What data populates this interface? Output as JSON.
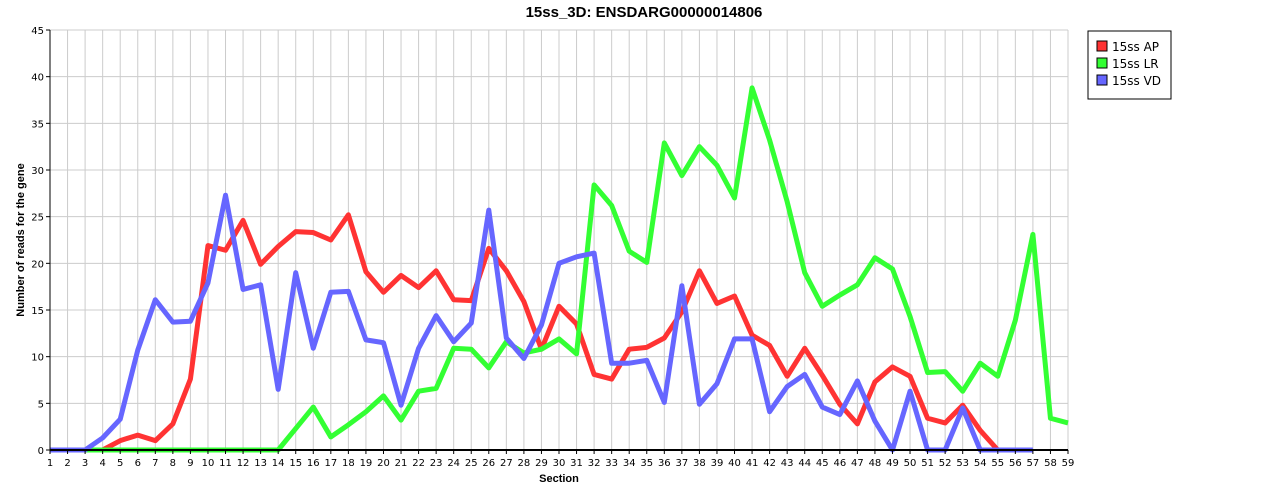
{
  "chart_data": {
    "type": "line",
    "title": "15ss_3D: ENSDARG00000014806",
    "xlabel": "Section",
    "ylabel": "Number of reads for the gene",
    "x": [
      1,
      2,
      3,
      4,
      5,
      6,
      7,
      8,
      9,
      10,
      11,
      12,
      13,
      14,
      15,
      16,
      17,
      18,
      19,
      20,
      21,
      22,
      23,
      24,
      25,
      26,
      27,
      28,
      29,
      30,
      31,
      32,
      33,
      34,
      35,
      36,
      37,
      38,
      39,
      40,
      41,
      42,
      43,
      44,
      45,
      46,
      47,
      48,
      49,
      50,
      51,
      52,
      53,
      54,
      55,
      56,
      57,
      58,
      59
    ],
    "xlim": [
      1,
      59
    ],
    "ylim": [
      0,
      45
    ],
    "yticks": [
      0,
      5,
      10,
      15,
      20,
      25,
      30,
      35,
      40,
      45
    ],
    "grid": true,
    "legend_position": "top-right outside",
    "series": [
      {
        "name": "15ss AP",
        "color": "#ff3333",
        "values": [
          0,
          0,
          0,
          0,
          1,
          1.6,
          1,
          2.8,
          7.6,
          21.9,
          21.4,
          24.6,
          19.9,
          21.8,
          23.4,
          23.3,
          22.5,
          25.2,
          19.1,
          16.9,
          18.7,
          17.4,
          19.2,
          16.1,
          16,
          21.6,
          19.2,
          15.9,
          10.8,
          15.4,
          13.5,
          8.1,
          7.6,
          10.8,
          11,
          12,
          14.8,
          19.2,
          15.7,
          16.5,
          12.3,
          11.2,
          7.9,
          10.9,
          8,
          4.9,
          2.8,
          7.3,
          8.9,
          7.9,
          3.4,
          2.9,
          4.8,
          2.1,
          0,
          null,
          null,
          null,
          null
        ]
      },
      {
        "name": "15ss LR",
        "color": "#33ff33",
        "values": [
          0,
          0,
          0,
          0,
          0,
          0,
          0,
          0,
          0,
          0,
          0,
          0,
          0,
          0,
          2.3,
          4.6,
          1.4,
          2.7,
          4.1,
          5.8,
          3.2,
          6.3,
          6.6,
          10.9,
          10.8,
          8.8,
          11.6,
          10.4,
          10.8,
          11.9,
          10.3,
          28.4,
          26.2,
          21.3,
          20.1,
          32.9,
          29.4,
          32.5,
          30.5,
          27,
          38.8,
          33.2,
          26.6,
          19,
          15.4,
          16.6,
          17.7,
          20.6,
          19.4,
          14.3,
          8.3,
          8.4,
          6.3,
          9.3,
          7.9,
          13.9,
          23.1,
          3.4,
          2.9
        ]
      },
      {
        "name": "15ss VD",
        "color": "#6666ff",
        "values": [
          0,
          0,
          0,
          1.3,
          3.3,
          10.7,
          16.1,
          13.7,
          13.8,
          17.9,
          27.3,
          17.2,
          17.7,
          6.5,
          19,
          10.9,
          16.9,
          17,
          11.8,
          11.5,
          4.8,
          10.9,
          14.4,
          11.6,
          13.6,
          25.7,
          12,
          9.8,
          13.4,
          20,
          20.7,
          21.1,
          9.3,
          9.3,
          9.6,
          5.1,
          17.6,
          4.9,
          7.1,
          11.9,
          11.9,
          4.1,
          6.8,
          8.1,
          4.6,
          3.8,
          7.4,
          3.1,
          0,
          6.3,
          0,
          0,
          4.5,
          0,
          0,
          0,
          0,
          null,
          null
        ]
      }
    ]
  }
}
